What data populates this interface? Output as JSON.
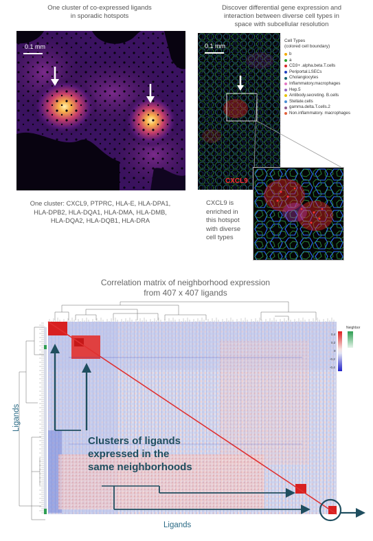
{
  "top_left": {
    "caption": [
      "One cluster of co-expressed ligands",
      "in sporadic hotspots"
    ],
    "scale_label": "0.1 mm",
    "cluster_text": [
      "One cluster: CXCL9, PTPRC, HLA-E, HLA-DPA1,",
      "HLA-DPB2, HLA-DQA1, HLA-DMA, HLA-DMB,",
      "HLA-DQA2, HLA-DQB1, HLA-DRA"
    ]
  },
  "top_right": {
    "caption": [
      "Discover differential gene expression and",
      "interaction between diverse cell types in",
      "space with subcellular resolution"
    ],
    "scale_label": "0.1 mm",
    "legend_title": [
      "Cell Types",
      "(colored cell boundary)"
    ],
    "legend": [
      {
        "label": "b",
        "color": "#f2a900"
      },
      {
        "label": "a",
        "color": "#2ca02c"
      },
      {
        "label": "CD3+ .alpha.beta.T.cells",
        "color": "#d62728"
      },
      {
        "label": "Periportal.LSECs",
        "color": "#1f3fbf"
      },
      {
        "label": "Cholangiocytes",
        "color": "#17606b"
      },
      {
        "label": "Inflammatory.macrophages",
        "color": "#e377c2"
      },
      {
        "label": "Hep.5",
        "color": "#9467bd"
      },
      {
        "label": "Antibody.secreting. B.cells",
        "color": "#e8c200"
      },
      {
        "label": "Stellate.cells",
        "color": "#4a8fd4"
      },
      {
        "label": "gamma.delta.T.cells.2",
        "color": "#8c5a8c"
      },
      {
        "label": "Non.inflammatory. macrophages",
        "color": "#e0603a"
      }
    ],
    "gene_label": "CXCL9",
    "enriched_text": [
      "CXCL9 is",
      "enriched in",
      "this hotspot",
      "with diverse",
      "cell types"
    ]
  },
  "matrix": {
    "title": [
      "Correlation matrix of neighborhood expression",
      "from 407 x 407 ligands"
    ],
    "callout": [
      "Clusters of ligands",
      "expressed in the",
      "same neighborhoods"
    ],
    "x_label": "Ligands",
    "y_label": "Ligands",
    "colorbar_title": "Neighbor",
    "colorbar_ticks": [
      "0.4",
      "0.2",
      "0",
      "-0.2",
      "-0.4"
    ],
    "colors": {
      "positive": "#e03030",
      "negative": "#3355cc",
      "accent": "#1f4e5f"
    }
  }
}
